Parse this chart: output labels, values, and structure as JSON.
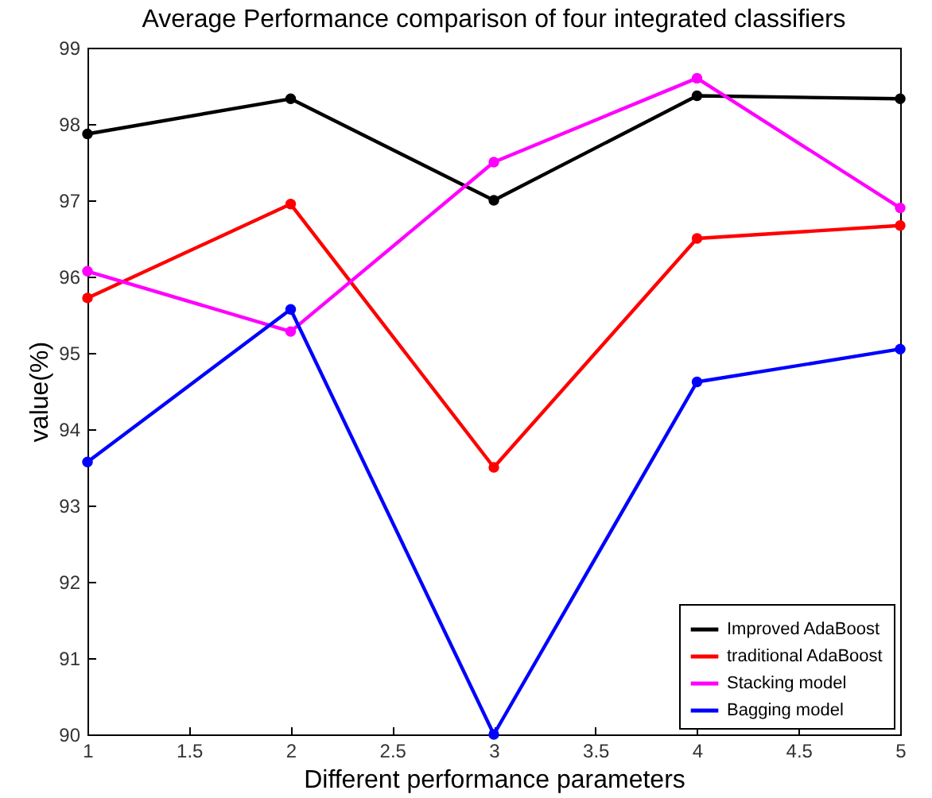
{
  "chart_data": {
    "type": "line",
    "title": "Average Performance comparison of four integrated classifiers",
    "xlabel": "Different performance parameters",
    "ylabel": "value(%)",
    "x": [
      1,
      2,
      3,
      4,
      5
    ],
    "series": [
      {
        "name": "Improved AdaBoost",
        "color": "#000000",
        "values": [
          97.87,
          98.33,
          97.0,
          98.37,
          98.33
        ]
      },
      {
        "name": "traditional AdaBoost",
        "color": "#ff0000",
        "values": [
          95.72,
          96.95,
          93.5,
          96.5,
          96.67
        ]
      },
      {
        "name": "Stacking model",
        "color": "#ff00ff",
        "values": [
          96.07,
          95.28,
          97.5,
          98.6,
          96.9
        ]
      },
      {
        "name": "Bagging model",
        "color": "#0000ff",
        "values": [
          93.57,
          95.57,
          90.0,
          94.62,
          95.05
        ]
      }
    ],
    "xlim": [
      1,
      5
    ],
    "xticks": [
      1,
      1.5,
      2,
      2.5,
      3,
      3.5,
      4,
      4.5,
      5
    ],
    "ylim": [
      90,
      99
    ],
    "yticks": [
      90,
      91,
      92,
      93,
      94,
      95,
      96,
      97,
      98,
      99
    ],
    "grid": false,
    "legend": "bottom right",
    "marker": "circle",
    "line_style": "solid"
  }
}
